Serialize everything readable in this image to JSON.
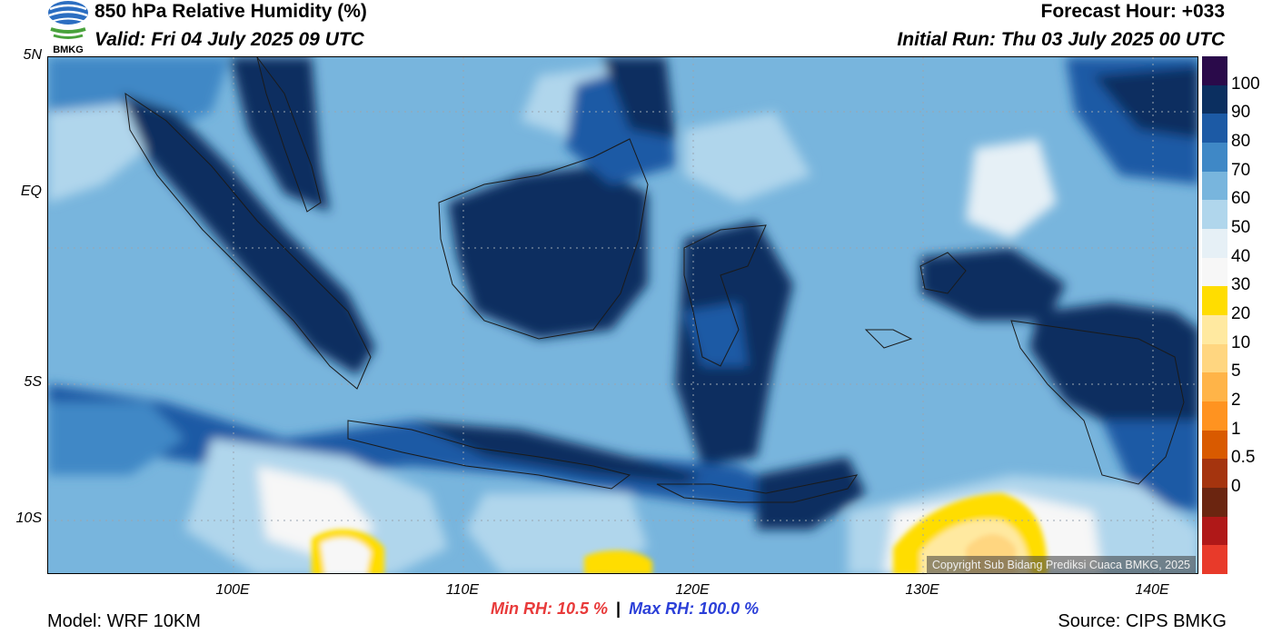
{
  "header": {
    "title": "850 hPa Relative Humidity (%)",
    "valid": "Valid: Fri 04 July 2025 09 UTC",
    "forecast_hour": "Forecast Hour: +033",
    "initial_run": "Initial Run: Thu 03 July 2025 00 UTC",
    "logo_text": "BMKG"
  },
  "map": {
    "lat_ticks": [
      "5N",
      "EQ",
      "5S",
      "10S"
    ],
    "lon_ticks": [
      "100E",
      "110E",
      "120E",
      "130E",
      "140E"
    ],
    "copyright": "Copyright Sub Bidang Prediksi Cuaca BMKG, 2025"
  },
  "colorbar": {
    "labels": [
      "100",
      "90",
      "80",
      "70",
      "60",
      "50",
      "40",
      "30",
      "20",
      "10",
      "5",
      "2",
      "1",
      "0.5",
      "0"
    ],
    "colors": [
      "#2a0a4a",
      "#0b2f60",
      "#1c5aa5",
      "#3f88c6",
      "#78b5dd",
      "#b0d6ec",
      "#e6f0f6",
      "#f7f7f7",
      "#ffdd00",
      "#ffe9a0",
      "#ffd680",
      "#ffb448",
      "#ff9320",
      "#d95a00",
      "#a5340e",
      "#6b2510",
      "#b01818",
      "#e83a2a"
    ]
  },
  "stats": {
    "min": "Min RH:  10.5 %",
    "separator": "|",
    "max": "Max RH: 100.0 %"
  },
  "footer": {
    "model": "Model: WRF 10KM",
    "source": "Source: CIPS BMKG"
  }
}
